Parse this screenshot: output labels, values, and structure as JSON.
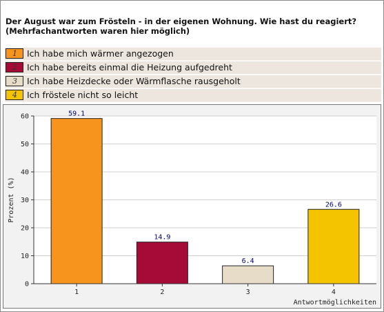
{
  "question": {
    "line1": "Der August war zum Frösteln - in der eigenen Wohnung. Wie hast du reagiert?",
    "line2": "(Mehrfachantworten waren hier möglich)"
  },
  "answers": [
    {
      "number": "1",
      "text": "Ich habe mich wärmer angezogen",
      "color": "#f7941d"
    },
    {
      "number": "2",
      "text": "Ich habe bereits einmal die Heizung aufgedreht",
      "color": "#a50b36"
    },
    {
      "number": "3",
      "text": "Ich habe Heizdecke oder Wärmflasche rausgeholt",
      "color": "#e6dcc8"
    },
    {
      "number": "4",
      "text": "Ich fröstele nicht so leicht",
      "color": "#f5c400"
    }
  ],
  "chart_data": {
    "type": "bar",
    "categories": [
      "1",
      "2",
      "3",
      "4"
    ],
    "values": [
      59.1,
      14.9,
      6.4,
      26.6
    ],
    "value_labels": [
      "59.1",
      "14.9",
      "6.4",
      "26.6"
    ],
    "colors": [
      "#f7941d",
      "#a50b36",
      "#e6dcc8",
      "#f5c400"
    ],
    "ylabel": "Prozent (%)",
    "xlabel": "Antwortmöglichkeiten",
    "ylim": [
      0,
      60
    ],
    "yticks": [
      "0",
      "10",
      "20",
      "30",
      "40",
      "50",
      "60"
    ],
    "grid": true
  }
}
